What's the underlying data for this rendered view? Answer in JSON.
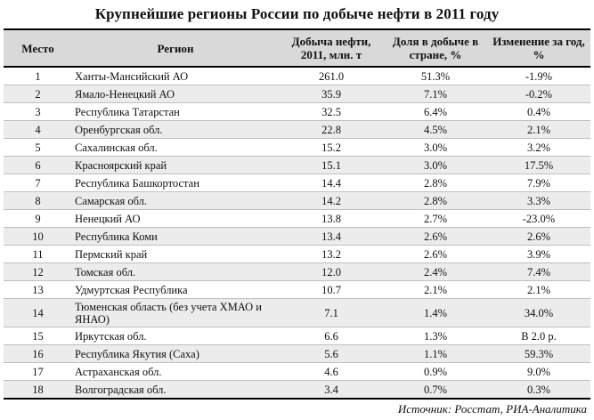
{
  "chart_data": {
    "type": "table",
    "title": "Крупнейшие регионы России по добыче нефти в 2011 году",
    "columns": [
      "Место",
      "Регион",
      "Добыча нефти, 2011, млн. т",
      "Доля в добыче в стране, %",
      "Изменение за год, %"
    ],
    "rows": [
      {
        "rank": "1",
        "region": "Ханты-Мансийский АО",
        "production": "261.0",
        "share": "51.3%",
        "change": "-1.9%"
      },
      {
        "rank": "2",
        "region": "Ямало-Ненецкий АО",
        "production": "35.9",
        "share": "7.1%",
        "change": "-0.2%"
      },
      {
        "rank": "3",
        "region": "Республика Татарстан",
        "production": "32.5",
        "share": "6.4%",
        "change": "0.4%"
      },
      {
        "rank": "4",
        "region": "Оренбургская обл.",
        "production": "22.8",
        "share": "4.5%",
        "change": "2.1%"
      },
      {
        "rank": "5",
        "region": "Сахалинская обл.",
        "production": "15.2",
        "share": "3.0%",
        "change": "3.2%"
      },
      {
        "rank": "6",
        "region": "Красноярский край",
        "production": "15.1",
        "share": "3.0%",
        "change": "17.5%"
      },
      {
        "rank": "7",
        "region": "Республика Башкортостан",
        "production": "14.4",
        "share": "2.8%",
        "change": "7.9%"
      },
      {
        "rank": "8",
        "region": "Самарская обл.",
        "production": "14.2",
        "share": "2.8%",
        "change": "3.3%"
      },
      {
        "rank": "9",
        "region": "Ненецкий АО",
        "production": "13.8",
        "share": "2.7%",
        "change": "-23.0%"
      },
      {
        "rank": "10",
        "region": "Республика Коми",
        "production": "13.4",
        "share": "2.6%",
        "change": "2.6%"
      },
      {
        "rank": "11",
        "region": "Пермский край",
        "production": "13.2",
        "share": "2.6%",
        "change": "3.9%"
      },
      {
        "rank": "12",
        "region": "Томская обл.",
        "production": "12.0",
        "share": "2.4%",
        "change": "7.4%"
      },
      {
        "rank": "13",
        "region": "Удмуртская Республика",
        "production": "10.7",
        "share": "2.1%",
        "change": "2.1%"
      },
      {
        "rank": "14",
        "region": "Тюменская область (без учета ХМАО и ЯНАО)",
        "production": "7.1",
        "share": "1.4%",
        "change": "34.0%"
      },
      {
        "rank": "15",
        "region": "Иркутская обл.",
        "production": "6.6",
        "share": "1.3%",
        "change": "В 2.0 р."
      },
      {
        "rank": "16",
        "region": "Республика Якутия (Саха)",
        "production": "5.6",
        "share": "1.1%",
        "change": "59.3%"
      },
      {
        "rank": "17",
        "region": "Астраханская обл.",
        "production": "4.6",
        "share": "0.9%",
        "change": "9.0%"
      },
      {
        "rank": "18",
        "region": "Волгоградская обл.",
        "production": "3.4",
        "share": "0.7%",
        "change": "0.3%"
      }
    ],
    "source": "Источник: Росстат, РИА-Аналитика"
  }
}
